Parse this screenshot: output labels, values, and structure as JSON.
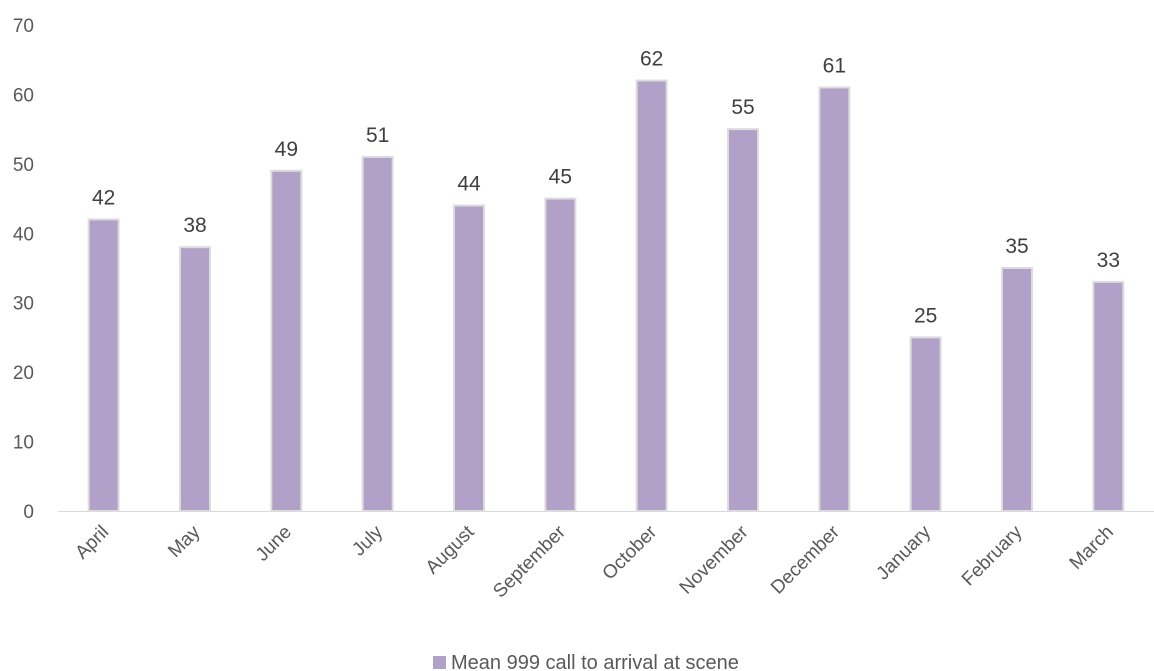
{
  "chart_data": {
    "type": "bar",
    "categories": [
      "April",
      "May",
      "June",
      "July",
      "August",
      "September",
      "October",
      "November",
      "December",
      "January",
      "February",
      "March"
    ],
    "series": [
      {
        "name": "Mean 999 call to arrival at scene",
        "values": [
          42,
          38,
          49,
          51,
          44,
          45,
          62,
          55,
          61,
          25,
          35,
          33
        ],
        "color": "#b1a0c7"
      }
    ],
    "ylim": [
      0,
      70
    ],
    "yticks": [
      0,
      10,
      20,
      30,
      40,
      50,
      60,
      70
    ],
    "grid": false,
    "legend": "bottom",
    "data_labels": true
  }
}
